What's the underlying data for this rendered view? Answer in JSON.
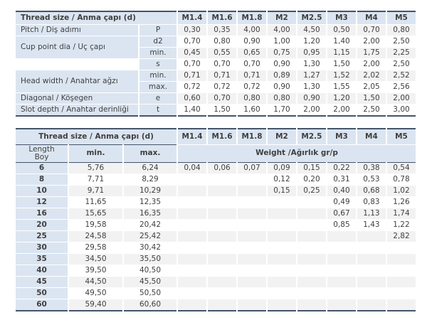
{
  "colors": {
    "header_blue": "#dbe5f1",
    "stripe_gray": "#f2f2f2",
    "border_dark": "#44546a",
    "text": "#3f3f3f"
  },
  "spec_table": {
    "title": "Thread size / Anma çapı (d)",
    "sizes": [
      "M1.4",
      "M1.6",
      "M1.8",
      "M2",
      "M2.5",
      "M3",
      "M4",
      "M5"
    ],
    "rows": [
      {
        "label": "Pitch / Diş adımı",
        "rowspan": 1,
        "symbol": "P",
        "values": [
          "0,30",
          "0,35",
          "4,00",
          "4,00",
          "4,50",
          "0,50",
          "0,70",
          "0,80"
        ]
      },
      {
        "label": "Cup point dia / Uç çapı",
        "rowspan": 2,
        "symbol": "d2",
        "values": [
          "0,70",
          "0,80",
          "0,90",
          "1,00",
          "1,20",
          "1,40",
          "2,00",
          "2,50"
        ]
      },
      {
        "symbol": "min.",
        "values": [
          "0,45",
          "0,55",
          "0,65",
          "0,75",
          "0,95",
          "1,15",
          "1,75",
          "2,25"
        ]
      },
      {
        "label": "",
        "blank": true,
        "rowspan": 1,
        "symbol": "s",
        "values": [
          "0,70",
          "0,70",
          "0,70",
          "0,90",
          "1,30",
          "1,50",
          "2,00",
          "2,50"
        ]
      },
      {
        "label": "Head width / Anahtar ağzı",
        "rowspan": 2,
        "symbol": "min.",
        "values": [
          "0,71",
          "0,71",
          "0,71",
          "0,89",
          "1,27",
          "1,52",
          "2,02",
          "2,52"
        ]
      },
      {
        "symbol": "max.",
        "values": [
          "0,72",
          "0,72",
          "0,72",
          "0,90",
          "1,30",
          "1,55",
          "2,05",
          "2,56"
        ]
      },
      {
        "label": "Diagonal / Köşegen",
        "rowspan": 1,
        "symbol": "e",
        "values": [
          "0,60",
          "0,70",
          "0,80",
          "0,80",
          "0,90",
          "1,20",
          "1,50",
          "2,00"
        ]
      },
      {
        "label": "Slot depth / Anahtar derinliği",
        "rowspan": 1,
        "symbol": "t",
        "values": [
          "1,40",
          "1,50",
          "1,60",
          "1,70",
          "2,00",
          "2,00",
          "2,50",
          "3,00"
        ]
      }
    ]
  },
  "length_table": {
    "title": "Thread size / Anma çapı (d)",
    "sizes": [
      "M1.4",
      "M1.6",
      "M1.8",
      "M2",
      "M2.5",
      "M3",
      "M4",
      "M5"
    ],
    "length_header_line1": "Length",
    "length_header_line2": "Boy",
    "min_header": "min.",
    "max_header": "max.",
    "weight_header": "Weight /Ağırlık gr/p",
    "rows": [
      {
        "length": "6",
        "min": "5,76",
        "max": "6,24",
        "weights": [
          "0,04",
          "0,06",
          "0,07",
          "0,09",
          "0,15",
          "0,22",
          "0,38",
          "0,54"
        ]
      },
      {
        "length": "8",
        "min": "7,71",
        "max": "8,29",
        "weights": [
          "",
          "",
          "",
          "0,12",
          "0,20",
          "0,31",
          "0,53",
          "0,78"
        ]
      },
      {
        "length": "10",
        "min": "9,71",
        "max": "10,29",
        "weights": [
          "",
          "",
          "",
          "0,15",
          "0,25",
          "0,40",
          "0,68",
          "1,02"
        ]
      },
      {
        "length": "12",
        "min": "11,65",
        "max": "12,35",
        "weights": [
          "",
          "",
          "",
          "",
          "",
          "0,49",
          "0,83",
          "1,26"
        ]
      },
      {
        "length": "16",
        "min": "15,65",
        "max": "16,35",
        "weights": [
          "",
          "",
          "",
          "",
          "",
          "0,67",
          "1,13",
          "1,74"
        ]
      },
      {
        "length": "20",
        "min": "19,58",
        "max": "20,42",
        "weights": [
          "",
          "",
          "",
          "",
          "",
          "0,85",
          "1,43",
          "1,22"
        ]
      },
      {
        "length": "25",
        "min": "24,58",
        "max": "25,42",
        "weights": [
          "",
          "",
          "",
          "",
          "",
          "",
          "",
          "2,82"
        ]
      },
      {
        "length": "30",
        "min": "29,58",
        "max": "30,42",
        "weights": [
          "",
          "",
          "",
          "",
          "",
          "",
          "",
          ""
        ]
      },
      {
        "length": "35",
        "min": "34,50",
        "max": "35,50",
        "weights": [
          "",
          "",
          "",
          "",
          "",
          "",
          "",
          ""
        ]
      },
      {
        "length": "40",
        "min": "39,50",
        "max": "40,50",
        "weights": [
          "",
          "",
          "",
          "",
          "",
          "",
          "",
          ""
        ]
      },
      {
        "length": "45",
        "min": "44,50",
        "max": "45,50",
        "weights": [
          "",
          "",
          "",
          "",
          "",
          "",
          "",
          ""
        ]
      },
      {
        "length": "50",
        "min": "49,50",
        "max": "50,50",
        "weights": [
          "",
          "",
          "",
          "",
          "",
          "",
          "",
          ""
        ]
      },
      {
        "length": "60",
        "min": "59,40",
        "max": "60,60",
        "weights": [
          "",
          "",
          "",
          "",
          "",
          "",
          "",
          ""
        ]
      }
    ]
  }
}
